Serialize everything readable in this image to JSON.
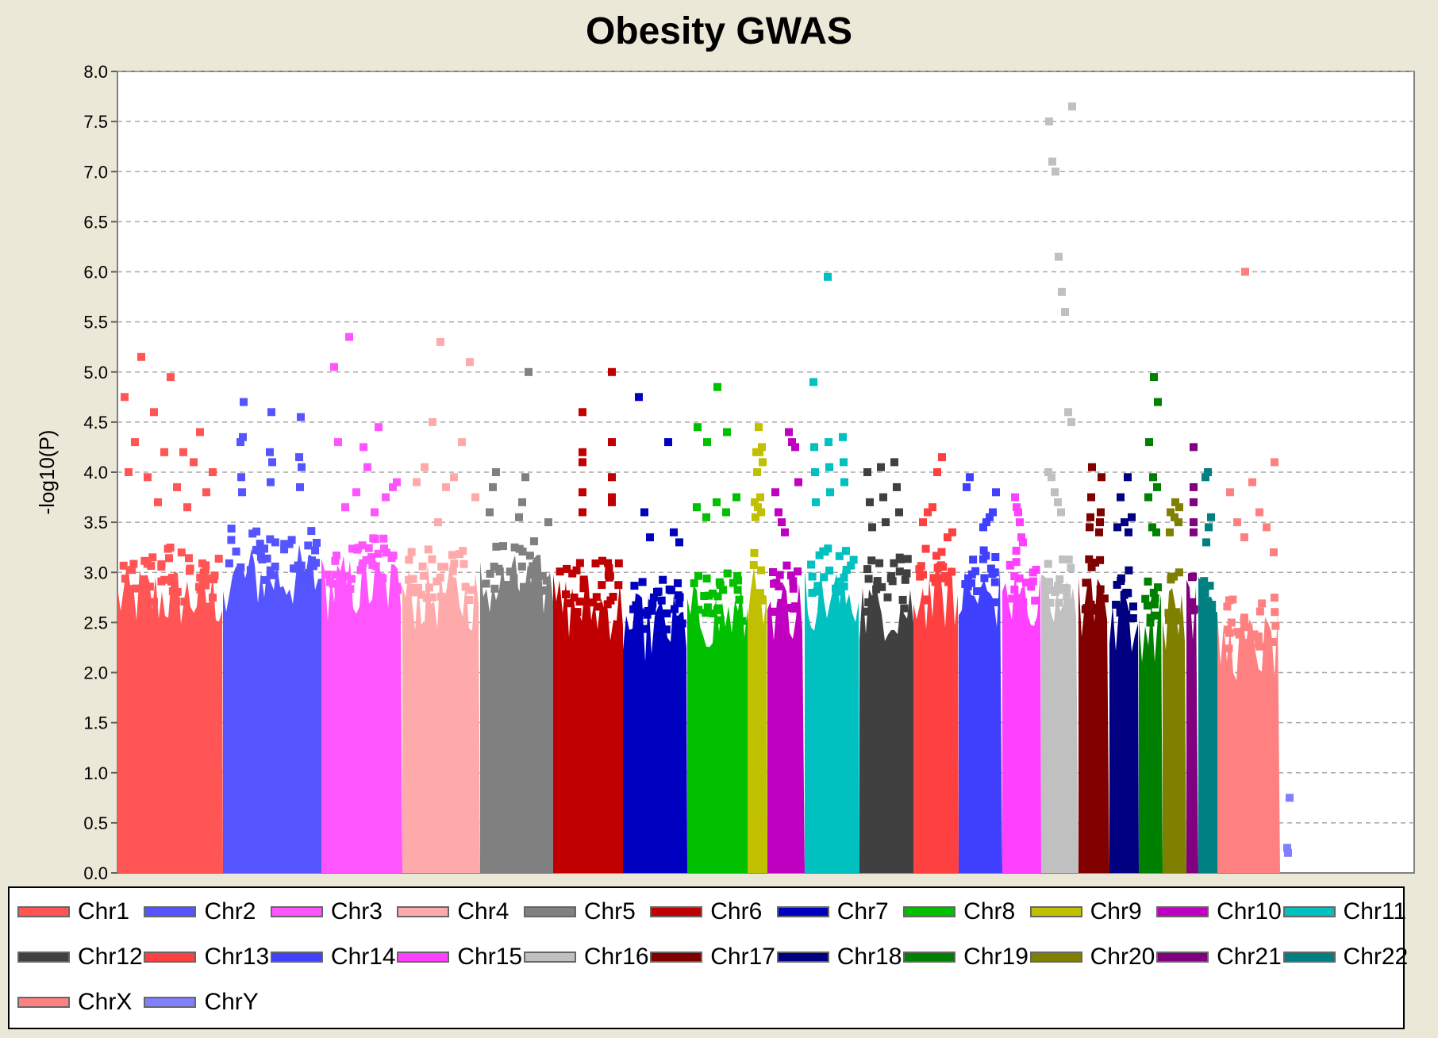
{
  "chart_data": {
    "type": "scatter",
    "title": "Obesity GWAS",
    "xlabel": "",
    "ylabel": "-log10(P)",
    "ylim": [
      0,
      8.0
    ],
    "yticks": [
      "0.0",
      "0.5",
      "1.0",
      "1.5",
      "2.0",
      "2.5",
      "3.0",
      "3.5",
      "4.0",
      "4.5",
      "5.0",
      "5.5",
      "6.0",
      "6.5",
      "7.0",
      "7.5",
      "8.0"
    ],
    "grid": true,
    "legend_position": "bottom",
    "series": [
      {
        "name": "Chr1",
        "color": "#ff5555",
        "base": 3.0,
        "peaks": [
          4.75,
          4.6,
          4.2,
          4.0,
          3.95,
          3.85,
          3.8,
          5.15,
          4.95,
          4.4,
          4.3,
          4.2,
          4.1,
          4.0,
          3.7,
          3.65
        ]
      },
      {
        "name": "Chr2",
        "color": "#5555ff",
        "base": 3.2,
        "peaks": [
          4.3,
          4.2,
          4.15,
          3.95,
          3.9,
          3.85,
          3.8,
          4.6,
          4.55,
          4.35,
          4.1,
          4.05,
          4.7
        ]
      },
      {
        "name": "Chr3",
        "color": "#ff55ff",
        "base": 3.1,
        "peaks": [
          5.35,
          4.45,
          4.3,
          4.05,
          3.9,
          3.8,
          3.75,
          3.65,
          3.6,
          5.05,
          4.25,
          3.85
        ]
      },
      {
        "name": "Chr4",
        "color": "#ffaaaa",
        "base": 3.0,
        "peaks": [
          5.3,
          5.1,
          4.5,
          4.3,
          4.05,
          3.95,
          3.9,
          3.85,
          3.75,
          3.5
        ]
      },
      {
        "name": "Chr5",
        "color": "#808080",
        "base": 3.1,
        "peaks": [
          5.0,
          4.0,
          3.95,
          3.85,
          3.7,
          3.6,
          3.55,
          3.5
        ]
      },
      {
        "name": "Chr6",
        "color": "#c00000",
        "base": 2.9,
        "peaks": [
          5.0,
          4.6,
          4.3,
          4.1,
          3.95,
          3.8,
          3.75,
          4.2,
          3.7,
          3.6
        ]
      },
      {
        "name": "Chr7",
        "color": "#0000c0",
        "base": 2.7,
        "peaks": [
          4.75,
          4.3,
          3.6,
          3.4,
          3.35,
          3.3
        ]
      },
      {
        "name": "Chr8",
        "color": "#00c000",
        "base": 2.8,
        "peaks": [
          4.85,
          4.45,
          4.4,
          4.3,
          3.75,
          3.7,
          3.65,
          3.6,
          3.55
        ]
      },
      {
        "name": "Chr9",
        "color": "#c0c000",
        "base": 3.0,
        "peaks": [
          4.45,
          4.25,
          4.2,
          4.2,
          4.1,
          4.0,
          3.75,
          3.7,
          3.65,
          3.6,
          3.55
        ]
      },
      {
        "name": "Chr10",
        "color": "#c000c0",
        "base": 2.9,
        "peaks": [
          4.4,
          4.3,
          4.25,
          3.9,
          3.8,
          3.6,
          3.5,
          3.4
        ]
      },
      {
        "name": "Chr11",
        "color": "#00c0c0",
        "base": 3.0,
        "peaks": [
          5.95,
          4.9,
          4.35,
          4.3,
          4.25,
          4.1,
          4.05,
          4.0,
          3.9,
          3.8,
          3.7
        ]
      },
      {
        "name": "Chr12",
        "color": "#404040",
        "base": 2.9,
        "peaks": [
          4.1,
          4.05,
          4.0,
          3.85,
          3.75,
          3.7,
          3.6,
          3.5,
          3.45
        ]
      },
      {
        "name": "Chr13",
        "color": "#ff4040",
        "base": 3.0,
        "peaks": [
          4.15,
          4.0,
          3.65,
          3.6,
          3.5,
          3.4,
          3.35
        ]
      },
      {
        "name": "Chr14",
        "color": "#4040ff",
        "base": 3.0,
        "peaks": [
          3.95,
          3.85,
          3.8,
          3.6,
          3.55,
          3.5,
          3.45
        ]
      },
      {
        "name": "Chr15",
        "color": "#ff40ff",
        "base": 3.0,
        "peaks": [
          3.75,
          3.65,
          3.6,
          3.5,
          3.35,
          3.3
        ]
      },
      {
        "name": "Chr16",
        "color": "#c0c0c0",
        "base": 2.9,
        "peaks": [
          7.65,
          7.5,
          7.1,
          7.0,
          6.15,
          5.8,
          5.6,
          4.6,
          4.5,
          4.0,
          3.95,
          3.8,
          3.7,
          3.6
        ]
      },
      {
        "name": "Chr17",
        "color": "#800000",
        "base": 2.9,
        "peaks": [
          4.05,
          3.95,
          3.75,
          3.6,
          3.55,
          3.5,
          3.45,
          3.4
        ]
      },
      {
        "name": "Chr18",
        "color": "#000080",
        "base": 2.8,
        "peaks": [
          3.95,
          3.75,
          3.55,
          3.5,
          3.45,
          3.4
        ]
      },
      {
        "name": "Chr19",
        "color": "#008000",
        "base": 2.7,
        "peaks": [
          4.95,
          4.7,
          4.3,
          3.95,
          3.85,
          3.75,
          3.45,
          3.4
        ]
      },
      {
        "name": "Chr20",
        "color": "#808000",
        "base": 2.8,
        "peaks": [
          3.7,
          3.65,
          3.6,
          3.55,
          3.5,
          3.4
        ]
      },
      {
        "name": "Chr21",
        "color": "#800080",
        "base": 2.9,
        "peaks": [
          4.25,
          3.85,
          3.7,
          3.5,
          3.4
        ]
      },
      {
        "name": "Chr22",
        "color": "#008080",
        "base": 2.9,
        "peaks": [
          4.0,
          3.95,
          3.55,
          3.45,
          3.3
        ]
      },
      {
        "name": "ChrX",
        "color": "#ff8080",
        "base": 2.5,
        "peaks": [
          6.0,
          4.1,
          3.9,
          3.8,
          3.6,
          3.5,
          3.45,
          3.35,
          3.2
        ]
      },
      {
        "name": "ChrY",
        "color": "#8080ff",
        "base": 0.0,
        "peaks": [
          0.75,
          0.25,
          0.2
        ]
      }
    ]
  }
}
